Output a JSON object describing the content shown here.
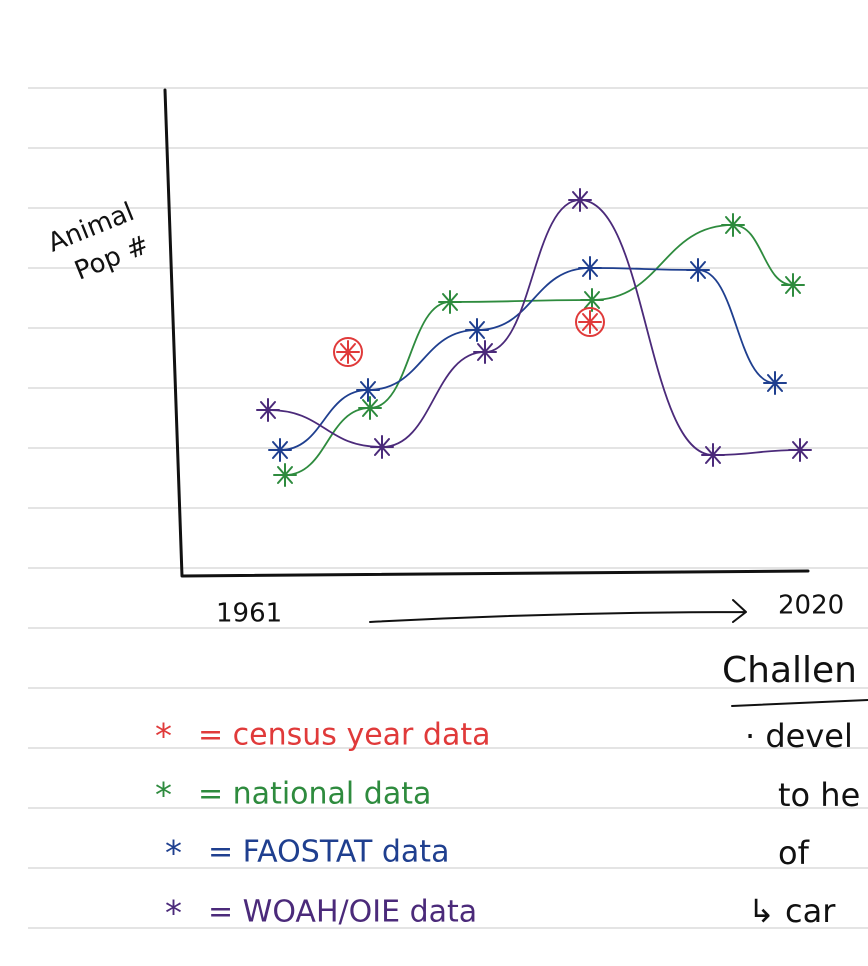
{
  "sketch": {
    "y_label": [
      "Animal",
      "Pop #"
    ],
    "x_start": "1961",
    "x_end": "2020",
    "legend": [
      {
        "marker": "*",
        "label": "= census year data"
      },
      {
        "marker": "*",
        "label": "= national data"
      },
      {
        "marker": "*",
        "label": "= FAOSTAT data"
      },
      {
        "marker": "*",
        "label": "= WOAH/OIE data"
      }
    ]
  },
  "side_notes": [
    "Challen",
    "· devel",
    "to he",
    "of",
    "↳ car"
  ]
}
